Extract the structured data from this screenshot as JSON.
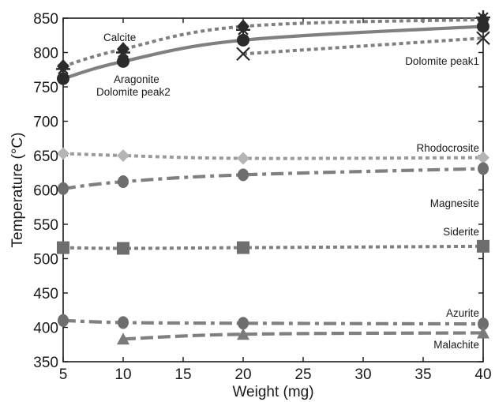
{
  "chart_data": {
    "type": "line",
    "title": "",
    "xlabel": "Weight (mg)",
    "ylabel": "Temperature (°C)",
    "xlim": [
      5,
      40
    ],
    "ylim": [
      350,
      850
    ],
    "xticks": [
      5,
      10,
      15,
      20,
      25,
      30,
      35,
      40
    ],
    "yticks": [
      350,
      400,
      450,
      500,
      550,
      600,
      650,
      700,
      750,
      800,
      850
    ],
    "grid": false,
    "legend": "none (series labelled directly on the plot)",
    "series": [
      {
        "name": "Calcite",
        "label": "Calcite",
        "color": "#808080",
        "line": "dotted",
        "marker": "diamond",
        "data": [
          [
            5,
            780
          ],
          [
            10,
            805
          ],
          [
            20,
            838
          ],
          [
            40,
            848
          ]
        ]
      },
      {
        "name": "Aragonite",
        "label": "Aragonite",
        "color": "#808080",
        "line": "solid",
        "marker": "circle",
        "data": [
          [
            5,
            762
          ],
          [
            10,
            787
          ],
          [
            20,
            818
          ],
          [
            40,
            838
          ]
        ]
      },
      {
        "name": "Dolomite peak2",
        "label": "Dolomite peak2",
        "color": "#808080",
        "line": "none",
        "marker": "cross",
        "data": [
          [
            5,
            776
          ],
          [
            10,
            800
          ],
          [
            20,
            833
          ],
          [
            40,
            851
          ]
        ]
      },
      {
        "name": "Dolomite peak1",
        "label": "Dolomite peak1",
        "color": "#808080",
        "line": "dotted",
        "marker": "x",
        "data": [
          [
            20,
            798
          ],
          [
            40,
            821
          ]
        ]
      },
      {
        "name": "Rhodocrosite",
        "label": "Rhodocrosite",
        "color": "#9a9a9a",
        "line": "dotted",
        "marker": "diamond-light",
        "data": [
          [
            5,
            653
          ],
          [
            10,
            650
          ],
          [
            20,
            646
          ],
          [
            40,
            647
          ]
        ]
      },
      {
        "name": "Magnesite",
        "label": "Magnesite",
        "color": "#808080",
        "line": "dashdot",
        "marker": "ellipse",
        "data": [
          [
            5,
            602
          ],
          [
            10,
            612
          ],
          [
            20,
            622
          ],
          [
            40,
            631
          ]
        ]
      },
      {
        "name": "Siderite",
        "label": "Siderite",
        "color": "#808080",
        "line": "dotted",
        "marker": "square",
        "data": [
          [
            5,
            516
          ],
          [
            10,
            515
          ],
          [
            20,
            516
          ],
          [
            40,
            518
          ]
        ]
      },
      {
        "name": "Azurite",
        "label": "Azurite",
        "color": "#808080",
        "line": "dashdot",
        "marker": "ellipse",
        "data": [
          [
            5,
            410
          ],
          [
            10,
            407
          ],
          [
            20,
            406
          ],
          [
            40,
            405
          ]
        ]
      },
      {
        "name": "Malachite",
        "label": "Malachite",
        "color": "#808080",
        "line": "dashed",
        "marker": "triangle",
        "data": [
          [
            10,
            383
          ],
          [
            20,
            390
          ],
          [
            40,
            392
          ]
        ]
      }
    ]
  }
}
